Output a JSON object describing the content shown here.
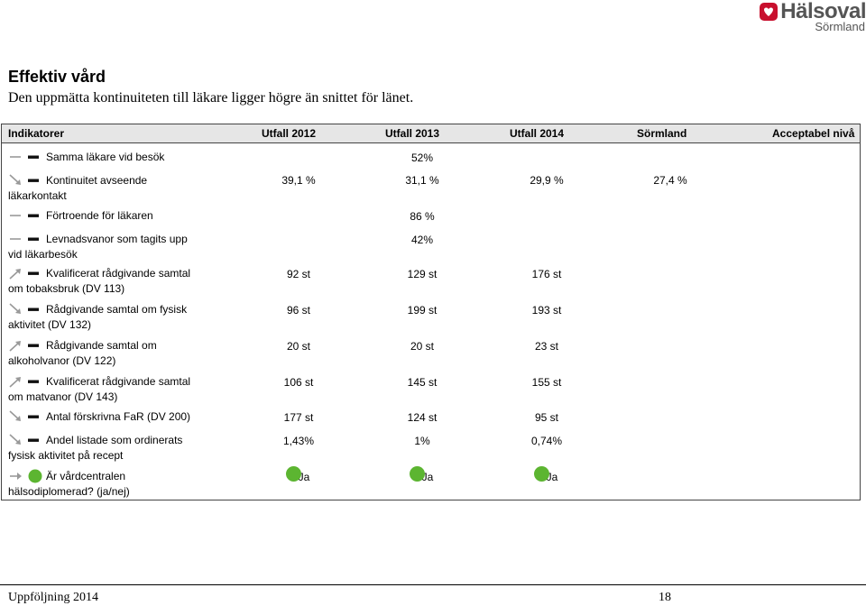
{
  "brand": {
    "name": "Hälsoval",
    "region": "Sörmland"
  },
  "title": "Effektiv vård",
  "subtitle": "Den uppmätta kontinuiteten till läkare ligger högre än snittet för länet.",
  "table": {
    "headers": [
      "Indikatorer",
      "Utfall 2012",
      "Utfall 2013",
      "Utfall 2014",
      "Sörmland",
      "Acceptabel nivå"
    ],
    "rows": [
      {
        "indicator": "Samma läkare vid besök",
        "trend": "flat",
        "merged": "52%"
      },
      {
        "indicator": "Kontinuitet avseende läkarkontakt",
        "trend": "down",
        "v2012": "39,1 %",
        "v2013": "31,1 %",
        "v2014": "29,9 %",
        "sormland": "27,4 %"
      },
      {
        "indicator": "Förtroende för läkaren",
        "trend": "flat",
        "merged": "86 %"
      },
      {
        "indicator": "Levnadsvanor som tagits upp vid läkarbesök",
        "trend": "flat",
        "merged": "42%"
      },
      {
        "indicator": "Kvalificerat rådgivande samtal om tobaksbruk (DV 113)",
        "trend": "up",
        "v2012": "92 st",
        "v2013": "129 st",
        "v2014": "176 st"
      },
      {
        "indicator": "Rådgivande samtal om fysisk aktivitet (DV 132)",
        "trend": "down",
        "v2012": "96 st",
        "v2013": "199 st",
        "v2014": "193 st"
      },
      {
        "indicator": "Rådgivande samtal om alkoholvanor (DV 122)",
        "trend": "up",
        "v2012": "20 st",
        "v2013": "20 st",
        "v2014": "23 st"
      },
      {
        "indicator": "Kvalificerat rådgivande samtal om matvanor (DV 143)",
        "trend": "up",
        "v2012": "106 st",
        "v2013": "145 st",
        "v2014": "155 st"
      },
      {
        "indicator": "Antal förskrivna FaR (DV 200)",
        "trend": "down",
        "v2012": "177 st",
        "v2013": "124 st",
        "v2014": "95 st"
      },
      {
        "indicator": "Andel listade som ordinerats fysisk aktivitet på recept",
        "trend": "down",
        "v2012": "1,43%",
        "v2013": "1%",
        "v2014": "0,74%"
      },
      {
        "indicator": "Är vårdcentralen hälsodiplomerad? (ja/nej)",
        "trend": "right-green",
        "v2012": "Ja",
        "v2013": "Ja",
        "v2014": "Ja"
      }
    ]
  },
  "footer": {
    "left": "Uppföljning 2014",
    "page": "18"
  },
  "colors": {
    "green": "#5cb531",
    "header_bg": "#e6e6e6",
    "logo_red": "#c8102e"
  }
}
